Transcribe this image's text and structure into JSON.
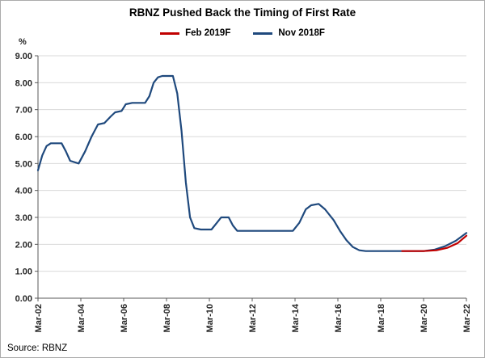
{
  "title": "RBNZ Pushed Back the Timing of First Rate",
  "source": "Source: RBNZ",
  "chart_data": {
    "type": "line",
    "title": "RBNZ Pushed Back the Timing of First Rate",
    "ylabel": "%",
    "ylim": [
      0,
      9
    ],
    "ytick_step": 1,
    "xlim": [
      0,
      20
    ],
    "xtick_positions": [
      0,
      2,
      4,
      6,
      8,
      10,
      12,
      14,
      16,
      18,
      20
    ],
    "xtick_labels": [
      "Mar-02",
      "Mar-04",
      "Mar-06",
      "Mar-08",
      "Mar-10",
      "Mar-12",
      "Mar-14",
      "Mar-16",
      "Mar-18",
      "Mar-20",
      "Mar-22"
    ],
    "grid": "horizontal",
    "grid_color": "#D9D9D9",
    "axis_color": "#595959",
    "legend_position": "top-center",
    "series": [
      {
        "name": "Feb 2019F",
        "color": "#C00000",
        "points": [
          [
            17,
            1.75
          ],
          [
            18,
            1.75
          ],
          [
            18.6,
            1.78
          ],
          [
            19.1,
            1.87
          ],
          [
            19.6,
            2.05
          ],
          [
            20,
            2.32
          ]
        ]
      },
      {
        "name": "Nov 2018F",
        "color": "#1F497D",
        "points": [
          [
            0,
            4.75
          ],
          [
            0.2,
            5.3
          ],
          [
            0.4,
            5.65
          ],
          [
            0.6,
            5.75
          ],
          [
            1.1,
            5.75
          ],
          [
            1.3,
            5.45
          ],
          [
            1.5,
            5.1
          ],
          [
            1.9,
            5.0
          ],
          [
            2.2,
            5.45
          ],
          [
            2.5,
            6.0
          ],
          [
            2.8,
            6.45
          ],
          [
            3.1,
            6.5
          ],
          [
            3.4,
            6.75
          ],
          [
            3.6,
            6.9
          ],
          [
            3.9,
            6.95
          ],
          [
            4.1,
            7.2
          ],
          [
            4.4,
            7.25
          ],
          [
            5.0,
            7.25
          ],
          [
            5.2,
            7.5
          ],
          [
            5.4,
            8.0
          ],
          [
            5.6,
            8.2
          ],
          [
            5.8,
            8.25
          ],
          [
            6.3,
            8.25
          ],
          [
            6.5,
            7.6
          ],
          [
            6.7,
            6.2
          ],
          [
            6.9,
            4.3
          ],
          [
            7.1,
            3.0
          ],
          [
            7.3,
            2.6
          ],
          [
            7.6,
            2.55
          ],
          [
            8.1,
            2.55
          ],
          [
            8.35,
            2.8
          ],
          [
            8.55,
            3.0
          ],
          [
            8.9,
            3.0
          ],
          [
            9.1,
            2.7
          ],
          [
            9.3,
            2.5
          ],
          [
            11.9,
            2.5
          ],
          [
            12.2,
            2.8
          ],
          [
            12.5,
            3.3
          ],
          [
            12.75,
            3.45
          ],
          [
            13.1,
            3.5
          ],
          [
            13.4,
            3.3
          ],
          [
            13.8,
            2.9
          ],
          [
            14.1,
            2.5
          ],
          [
            14.4,
            2.15
          ],
          [
            14.7,
            1.9
          ],
          [
            15.0,
            1.78
          ],
          [
            15.3,
            1.75
          ],
          [
            18.0,
            1.75
          ],
          [
            18.5,
            1.8
          ],
          [
            19.0,
            1.93
          ],
          [
            19.5,
            2.13
          ],
          [
            20,
            2.42
          ]
        ]
      }
    ]
  }
}
